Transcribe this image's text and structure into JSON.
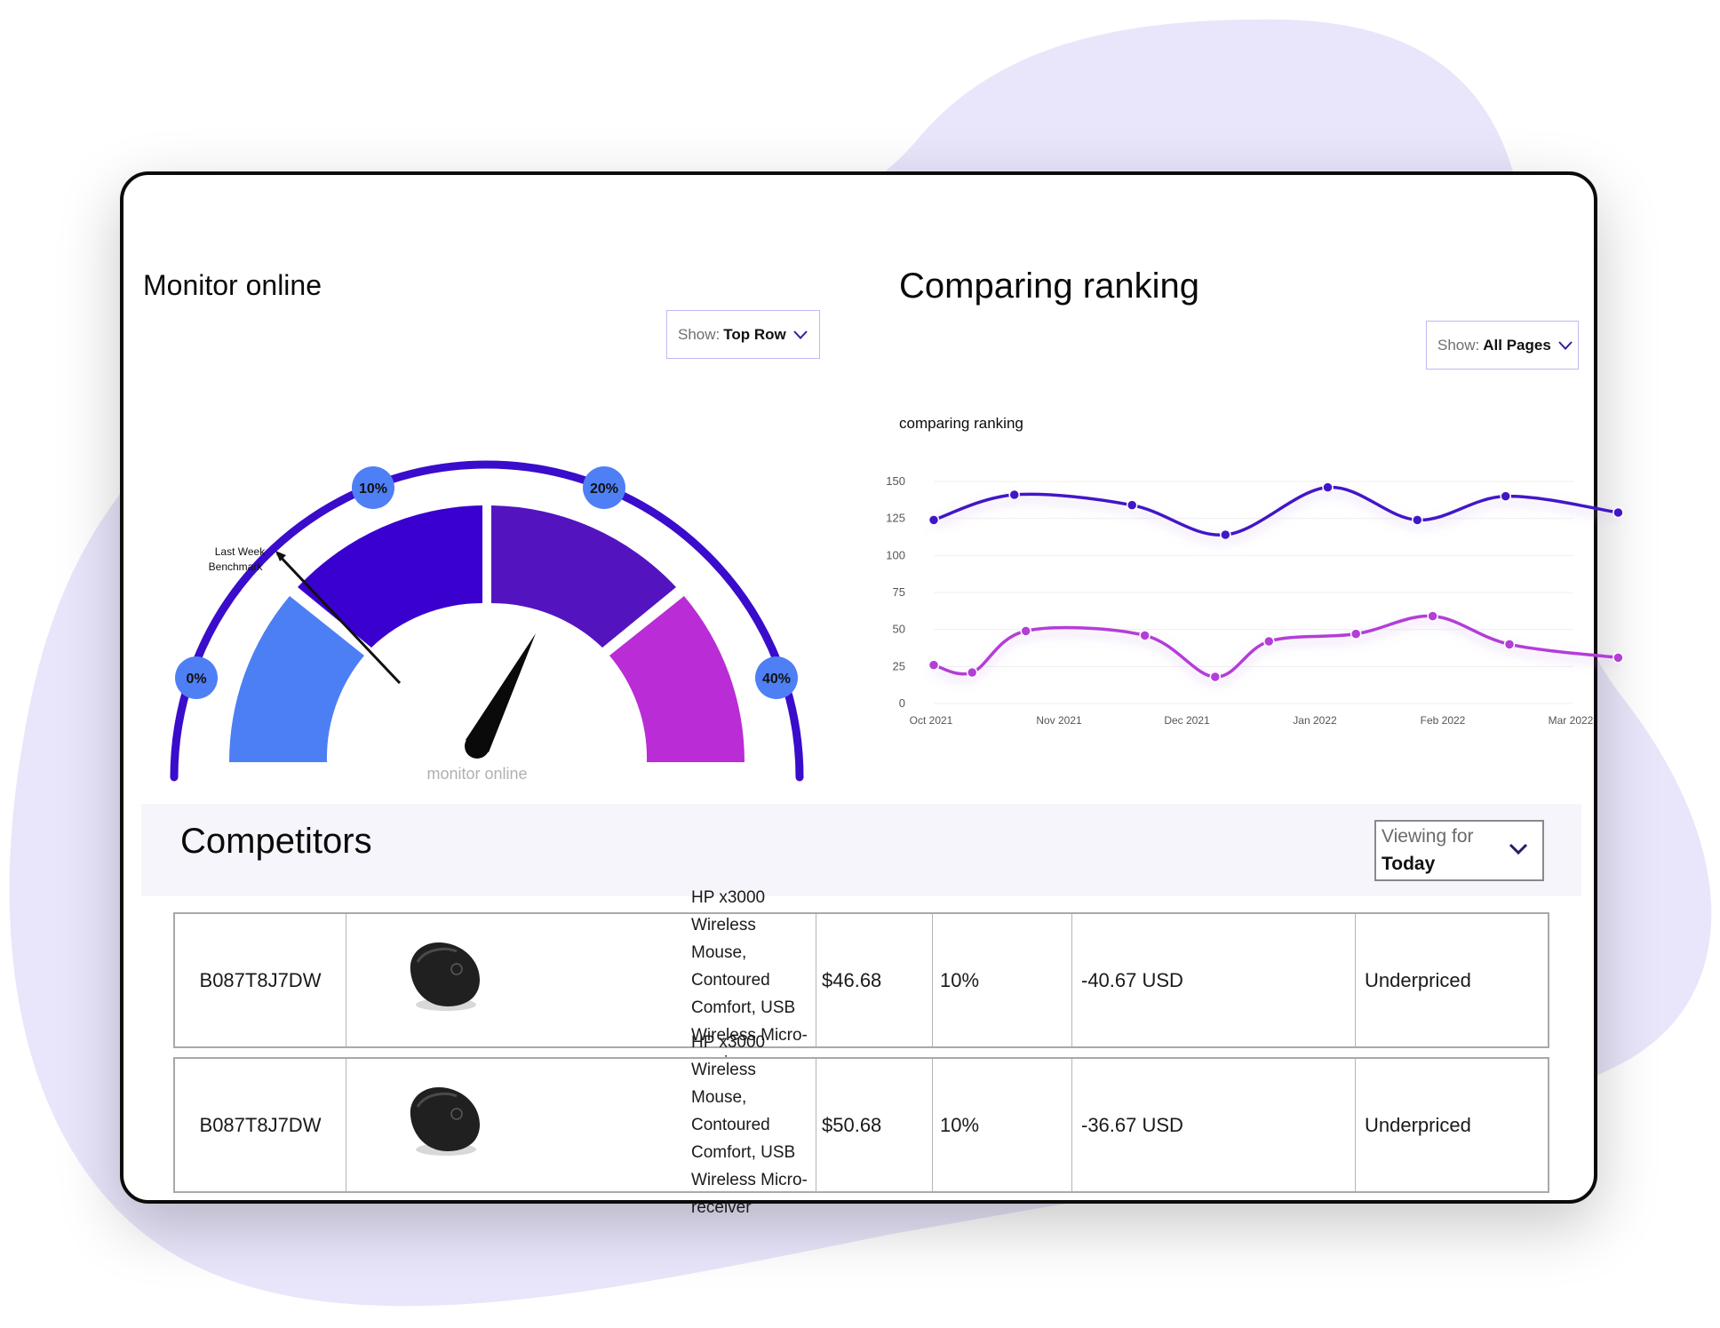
{
  "monitor": {
    "title": "Monitor online",
    "filter": {
      "label": "Show:",
      "value": "Top Row"
    },
    "gauge": {
      "ticks": [
        "0%",
        "10%",
        "20%",
        "40%"
      ],
      "benchmark_label": [
        "Last Week",
        "Benchmark"
      ],
      "caption": "monitor online",
      "colors": {
        "arc": "#3a0ccc",
        "tick_bubble": "#4f7ff5",
        "segments": [
          "#4d7ff4",
          "#3a00cf",
          "#5314c0",
          "#b92cd6"
        ]
      }
    }
  },
  "ranking": {
    "title": "Comparing ranking",
    "filter": {
      "label": "Show:",
      "value": "All Pages"
    },
    "chart_subtitle": "comparing ranking"
  },
  "chart_data": {
    "type": "line",
    "title": "comparing ranking",
    "x_tick_labels": [
      "Oct 2021",
      "Nov 2021",
      "Dec 2021",
      "Jan 2022",
      "Feb 2022",
      "Mar 2022"
    ],
    "y_ticks": [
      0,
      25,
      50,
      75,
      100,
      125,
      150
    ],
    "ylim": [
      0,
      150
    ],
    "grid": true,
    "series": [
      {
        "color": "#4216c8",
        "points": [
          [
            0.0,
            124
          ],
          [
            0.63,
            141
          ],
          [
            1.55,
            134
          ],
          [
            2.28,
            114
          ],
          [
            3.08,
            146
          ],
          [
            3.78,
            124
          ],
          [
            4.47,
            140
          ],
          [
            5.35,
            129
          ]
        ]
      },
      {
        "color": "#b43ed8",
        "points": [
          [
            0.0,
            26
          ],
          [
            0.3,
            21
          ],
          [
            0.72,
            49
          ],
          [
            1.65,
            46
          ],
          [
            2.2,
            18
          ],
          [
            2.62,
            42
          ],
          [
            3.3,
            47
          ],
          [
            3.9,
            59
          ],
          [
            4.5,
            40
          ],
          [
            5.35,
            31
          ]
        ]
      }
    ]
  },
  "competitors": {
    "title": "Competitors",
    "viewing": {
      "label": "Viewing for",
      "value": "Today"
    },
    "rows": [
      {
        "asin": "B087T8J7DW",
        "product": "HP x3000 Wireless Mouse, Contoured Comfort, USB Wireless Micro-receiver",
        "price": "$46.68",
        "percent": "10%",
        "diff": "-40.67 USD",
        "status": "Underpriced"
      },
      {
        "asin": "B087T8J7DW",
        "product": "HP x3000 Wireless Mouse, Contoured Comfort, USB Wireless Micro-receiver",
        "price": "$50.68",
        "percent": "10%",
        "diff": "-36.67 USD",
        "status": "Underpriced"
      }
    ]
  }
}
